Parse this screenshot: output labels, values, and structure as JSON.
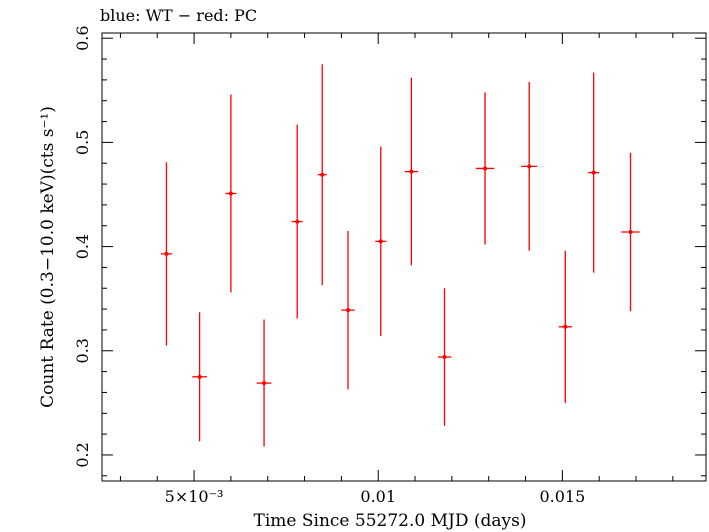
{
  "chart_data": {
    "type": "scatter",
    "title": "blue: WT − red: PC",
    "xlabel": "Time Since 55272.0 MJD (days)",
    "ylabel": "Count Rate (0.3−10.0 keV)(cts s⁻¹)",
    "xlim": [
      0.0025,
      0.0189
    ],
    "ylim": [
      0.175,
      0.605
    ],
    "x_ticks": [
      {
        "value": 0.005,
        "label": "5×10⁻³"
      },
      {
        "value": 0.01,
        "label": "0.01"
      },
      {
        "value": 0.015,
        "label": "0.015"
      }
    ],
    "y_ticks": [
      {
        "value": 0.2,
        "label": "0.2"
      },
      {
        "value": 0.3,
        "label": "0.3"
      },
      {
        "value": 0.4,
        "label": "0.4"
      },
      {
        "value": 0.5,
        "label": "0.5"
      },
      {
        "value": 0.6,
        "label": "0.6"
      }
    ],
    "grid": false,
    "series": [
      {
        "name": "PC",
        "color": "#ff0000",
        "points": [
          {
            "x": 0.00425,
            "xerr": 0.00015,
            "y": 0.393,
            "yerr_low": 0.088,
            "yerr_high": 0.088
          },
          {
            "x": 0.00515,
            "xerr": 0.0002,
            "y": 0.275,
            "yerr_low": 0.062,
            "yerr_high": 0.062
          },
          {
            "x": 0.006,
            "xerr": 0.00015,
            "y": 0.451,
            "yerr_low": 0.095,
            "yerr_high": 0.095
          },
          {
            "x": 0.0069,
            "xerr": 0.0002,
            "y": 0.269,
            "yerr_low": 0.061,
            "yerr_high": 0.061
          },
          {
            "x": 0.0078,
            "xerr": 0.00015,
            "y": 0.424,
            "yerr_low": 0.093,
            "yerr_high": 0.093
          },
          {
            "x": 0.00848,
            "xerr": 0.00012,
            "y": 0.469,
            "yerr_low": 0.106,
            "yerr_high": 0.106
          },
          {
            "x": 0.00918,
            "xerr": 0.00018,
            "y": 0.339,
            "yerr_low": 0.076,
            "yerr_high": 0.076
          },
          {
            "x": 0.01007,
            "xerr": 0.00015,
            "y": 0.405,
            "yerr_low": 0.091,
            "yerr_high": 0.091
          },
          {
            "x": 0.0109,
            "xerr": 0.00018,
            "y": 0.472,
            "yerr_low": 0.09,
            "yerr_high": 0.09
          },
          {
            "x": 0.0118,
            "xerr": 0.00018,
            "y": 0.294,
            "yerr_low": 0.066,
            "yerr_high": 0.066
          },
          {
            "x": 0.0129,
            "xerr": 0.00025,
            "y": 0.475,
            "yerr_low": 0.073,
            "yerr_high": 0.073
          },
          {
            "x": 0.0141,
            "xerr": 0.00022,
            "y": 0.477,
            "yerr_low": 0.081,
            "yerr_high": 0.081
          },
          {
            "x": 0.01508,
            "xerr": 0.00018,
            "y": 0.323,
            "yerr_low": 0.073,
            "yerr_high": 0.073
          },
          {
            "x": 0.01585,
            "xerr": 0.00015,
            "y": 0.471,
            "yerr_low": 0.096,
            "yerr_high": 0.096
          },
          {
            "x": 0.01685,
            "xerr": 0.00025,
            "y": 0.414,
            "yerr_low": 0.076,
            "yerr_high": 0.076
          }
        ]
      }
    ]
  }
}
